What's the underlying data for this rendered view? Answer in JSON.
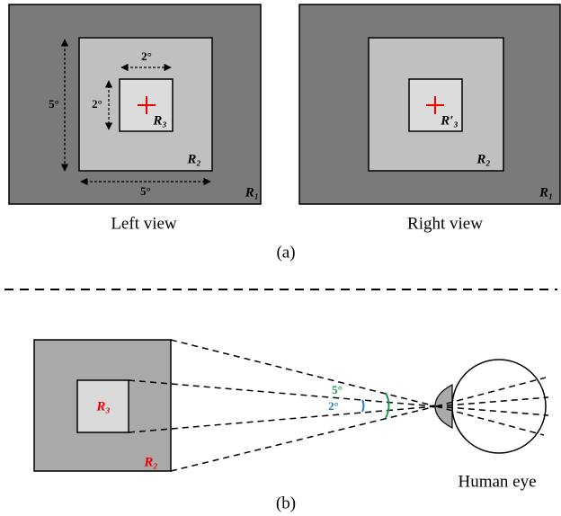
{
  "panel_a": {
    "left_view": {
      "caption": "Left view",
      "outer_label": "R₁",
      "middle_label": "R₂",
      "inner_label": "R₃",
      "height_label": "5°",
      "width_label": "5°",
      "inner_width_label": "2°",
      "inner_height_label": "2°"
    },
    "right_view": {
      "caption": "Right view",
      "outer_label": "R₁",
      "middle_label": "R₂",
      "inner_label": "R′₃"
    },
    "caption": "(a)"
  },
  "panel_b": {
    "middle_label": "R₂",
    "inner_label": "R₃",
    "outer_angle_label": "5°",
    "inner_angle_label": "2°",
    "eye_label": "Human eye",
    "caption": "(b)"
  }
}
